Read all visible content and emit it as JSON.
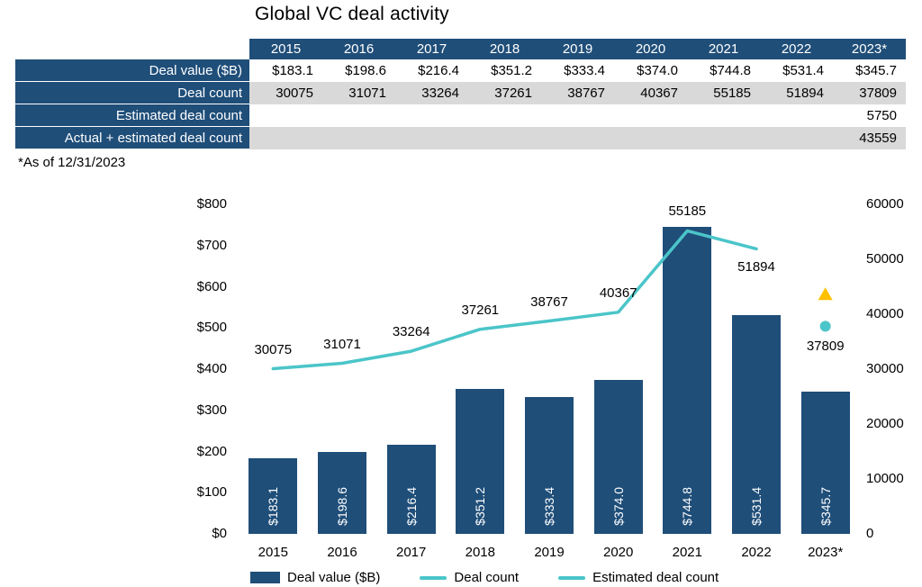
{
  "title": "Global VC deal activity",
  "footnote": "*As of 12/31/2023",
  "colors": {
    "navy": "#1F4E79",
    "teal": "#4BC5C9",
    "yellow": "#FFC000",
    "row_gray": "#D9D9D9",
    "row_white": "#FFFFFF"
  },
  "table": {
    "years": [
      "2015",
      "2016",
      "2017",
      "2018",
      "2019",
      "2020",
      "2021",
      "2022",
      "2023*"
    ],
    "rows": [
      {
        "label": "Deal value ($B)",
        "values": [
          "$183.1",
          "$198.6",
          "$216.4",
          "$351.2",
          "$333.4",
          "$374.0",
          "$744.8",
          "$531.4",
          "$345.7"
        ]
      },
      {
        "label": "Deal count",
        "values": [
          "30075",
          "31071",
          "33264",
          "37261",
          "38767",
          "40367",
          "55185",
          "51894",
          "37809"
        ]
      },
      {
        "label": "Estimated deal count",
        "values": [
          "",
          "",
          "",
          "",
          "",
          "",
          "",
          "",
          "5750"
        ]
      },
      {
        "label": "Actual + estimated deal count",
        "values": [
          "",
          "",
          "",
          "",
          "",
          "",
          "",
          "",
          "43559"
        ]
      }
    ]
  },
  "chart_data": {
    "type": "bar+line",
    "title": "Global VC deal activity",
    "categories": [
      "2015",
      "2016",
      "2017",
      "2018",
      "2019",
      "2020",
      "2021",
      "2022",
      "2023*"
    ],
    "series": [
      {
        "name": "Deal value ($B)",
        "type": "bar",
        "axis": "left",
        "values": [
          183.1,
          198.6,
          216.4,
          351.2,
          333.4,
          374.0,
          744.8,
          531.4,
          345.7
        ],
        "labels": [
          "$183.1",
          "$198.6",
          "$216.4",
          "$351.2",
          "$333.4",
          "$374.0",
          "$744.8",
          "$531.4",
          "$345.7"
        ]
      },
      {
        "name": "Deal count",
        "type": "line",
        "axis": "right",
        "values": [
          30075,
          31071,
          33264,
          37261,
          38767,
          40367,
          55185,
          51894,
          37809
        ],
        "line_points": 8,
        "last_point_style": "dot"
      },
      {
        "name": "Actual + estimated deal count",
        "type": "marker",
        "marker": "triangle",
        "axis": "right",
        "value": 43559
      }
    ],
    "left_axis": {
      "min": 0,
      "max": 800,
      "ticks": [
        "$0",
        "$100",
        "$200",
        "$300",
        "$400",
        "$500",
        "$600",
        "$700",
        "$800"
      ]
    },
    "right_axis": {
      "min": 0,
      "max": 60000,
      "ticks": [
        "0",
        "10000",
        "20000",
        "30000",
        "40000",
        "50000",
        "60000"
      ]
    },
    "grid": false,
    "legend_position": "bottom",
    "legend": [
      {
        "label": "Deal value ($B)",
        "marker": "bar"
      },
      {
        "label": "Deal count",
        "marker": "line"
      },
      {
        "label": "Estimated deal count",
        "marker": "line"
      }
    ]
  }
}
